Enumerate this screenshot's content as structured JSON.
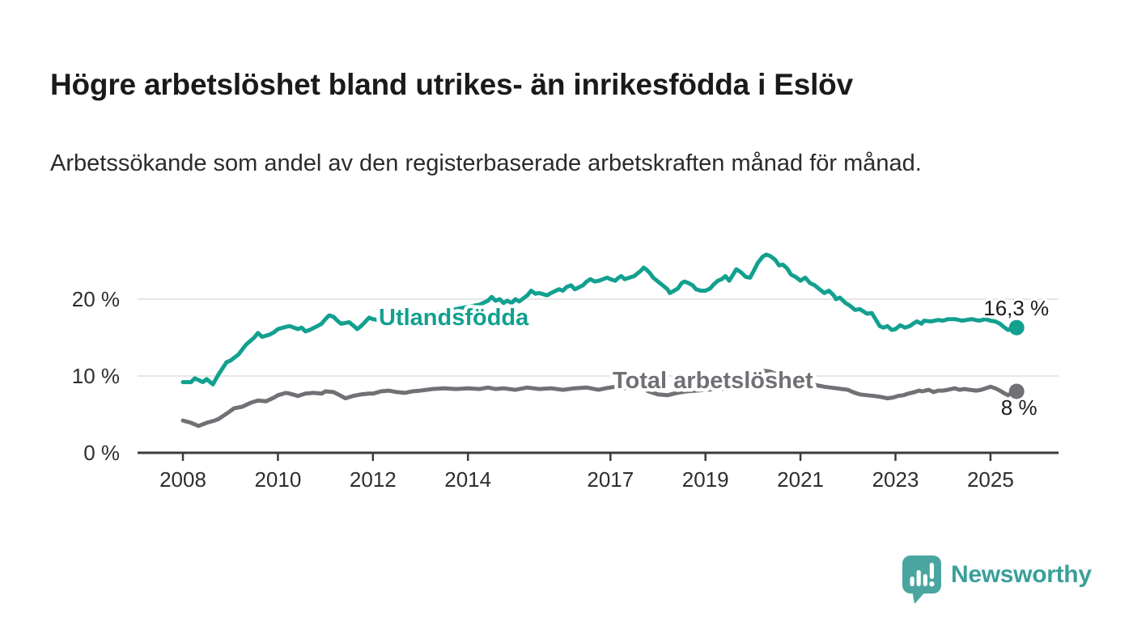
{
  "header": {
    "title": "Högre arbetslöshet bland utrikes- än inrikesfödda i Eslöv",
    "subtitle": "Arbetssökande som andel av den registerbaserade arbetskraften månad för månad."
  },
  "chart_data": {
    "type": "line",
    "title": "Högre arbetslöshet bland utrikes- än inrikesfödda i Eslöv",
    "subtitle": "Arbetssökande som andel av den registerbaserade arbetskraften månad för månad.",
    "grid": true,
    "legend_position": "inline-labels-on-lines",
    "x_axis": {
      "tick_labels": [
        "2008",
        "2010",
        "2012",
        "2014",
        "2017",
        "2019",
        "2021",
        "2023",
        "2025"
      ],
      "tick_values": [
        2008,
        2010,
        2012,
        2014,
        2017,
        2019,
        2021,
        2023,
        2025
      ],
      "range_years": [
        2007.0,
        2026.4
      ]
    },
    "y_axis": {
      "tick_labels": [
        "0 %",
        "10 %",
        "20 %"
      ],
      "tick_values": [
        0,
        10,
        20
      ],
      "unit": "%",
      "range": [
        0,
        27
      ]
    },
    "series": [
      {
        "name": "Utlandsfödda",
        "color": "#12A090",
        "end_value": 16.3,
        "end_value_label": "16,3 %",
        "points": [
          [
            2008.0,
            9.2
          ],
          [
            2008.17,
            9.2
          ],
          [
            2008.25,
            9.7
          ],
          [
            2008.42,
            9.2
          ],
          [
            2008.5,
            9.6
          ],
          [
            2008.63,
            8.9
          ],
          [
            2008.75,
            10.2
          ],
          [
            2008.92,
            11.8
          ],
          [
            2009.0,
            12.0
          ],
          [
            2009.17,
            12.8
          ],
          [
            2009.33,
            14.1
          ],
          [
            2009.5,
            15.0
          ],
          [
            2009.58,
            15.6
          ],
          [
            2009.67,
            15.1
          ],
          [
            2009.83,
            15.4
          ],
          [
            2009.92,
            15.7
          ],
          [
            2010.0,
            16.1
          ],
          [
            2010.17,
            16.4
          ],
          [
            2010.25,
            16.5
          ],
          [
            2010.42,
            16.1
          ],
          [
            2010.5,
            16.3
          ],
          [
            2010.58,
            15.8
          ],
          [
            2010.67,
            16.0
          ],
          [
            2010.83,
            16.5
          ],
          [
            2010.92,
            16.8
          ],
          [
            2011.0,
            17.4
          ],
          [
            2011.08,
            17.9
          ],
          [
            2011.17,
            17.7
          ],
          [
            2011.25,
            17.2
          ],
          [
            2011.33,
            16.8
          ],
          [
            2011.5,
            17.0
          ],
          [
            2011.58,
            16.6
          ],
          [
            2011.67,
            16.1
          ],
          [
            2011.75,
            16.5
          ],
          [
            2011.83,
            17.0
          ],
          [
            2011.92,
            17.6
          ],
          [
            2012.0,
            17.4
          ],
          [
            2012.17,
            17.2
          ],
          [
            2012.25,
            16.8
          ],
          [
            2012.33,
            17.0
          ],
          [
            2012.5,
            17.2
          ],
          [
            2012.75,
            17.5
          ],
          [
            2013.0,
            17.8
          ],
          [
            2013.25,
            18.1
          ],
          [
            2013.5,
            18.4
          ],
          [
            2013.75,
            18.7
          ],
          [
            2014.0,
            19.0
          ],
          [
            2014.25,
            19.3
          ],
          [
            2014.42,
            19.8
          ],
          [
            2014.5,
            20.3
          ],
          [
            2014.58,
            19.8
          ],
          [
            2014.67,
            20.0
          ],
          [
            2014.75,
            19.5
          ],
          [
            2014.83,
            19.8
          ],
          [
            2014.92,
            19.5
          ],
          [
            2015.0,
            20.0
          ],
          [
            2015.08,
            19.7
          ],
          [
            2015.25,
            20.5
          ],
          [
            2015.33,
            21.1
          ],
          [
            2015.42,
            20.7
          ],
          [
            2015.5,
            20.8
          ],
          [
            2015.67,
            20.5
          ],
          [
            2015.75,
            20.8
          ],
          [
            2015.92,
            21.3
          ],
          [
            2016.0,
            21.1
          ],
          [
            2016.08,
            21.6
          ],
          [
            2016.17,
            21.8
          ],
          [
            2016.25,
            21.3
          ],
          [
            2016.42,
            21.8
          ],
          [
            2016.5,
            22.3
          ],
          [
            2016.58,
            22.6
          ],
          [
            2016.67,
            22.3
          ],
          [
            2016.76,
            22.4
          ],
          [
            2016.84,
            22.6
          ],
          [
            2016.93,
            22.8
          ],
          [
            2017.0,
            22.6
          ],
          [
            2017.1,
            22.4
          ],
          [
            2017.17,
            22.8
          ],
          [
            2017.23,
            23.0
          ],
          [
            2017.3,
            22.6
          ],
          [
            2017.4,
            22.8
          ],
          [
            2017.5,
            23.0
          ],
          [
            2017.58,
            23.4
          ],
          [
            2017.64,
            23.7
          ],
          [
            2017.7,
            24.1
          ],
          [
            2017.75,
            23.9
          ],
          [
            2017.83,
            23.4
          ],
          [
            2017.9,
            22.8
          ],
          [
            2018.0,
            22.3
          ],
          [
            2018.1,
            21.8
          ],
          [
            2018.2,
            21.3
          ],
          [
            2018.25,
            20.8
          ],
          [
            2018.34,
            21.1
          ],
          [
            2018.42,
            21.4
          ],
          [
            2018.5,
            22.1
          ],
          [
            2018.56,
            22.3
          ],
          [
            2018.64,
            22.1
          ],
          [
            2018.73,
            21.8
          ],
          [
            2018.8,
            21.3
          ],
          [
            2018.9,
            21.1
          ],
          [
            2019.0,
            21.1
          ],
          [
            2019.1,
            21.4
          ],
          [
            2019.17,
            21.9
          ],
          [
            2019.26,
            22.4
          ],
          [
            2019.34,
            22.6
          ],
          [
            2019.42,
            23.0
          ],
          [
            2019.5,
            22.4
          ],
          [
            2019.65,
            23.9
          ],
          [
            2019.75,
            23.5
          ],
          [
            2019.85,
            22.9
          ],
          [
            2019.94,
            22.8
          ],
          [
            2020.0,
            23.5
          ],
          [
            2020.1,
            24.7
          ],
          [
            2020.2,
            25.5
          ],
          [
            2020.28,
            25.8
          ],
          [
            2020.37,
            25.6
          ],
          [
            2020.47,
            25.1
          ],
          [
            2020.55,
            24.4
          ],
          [
            2020.63,
            24.5
          ],
          [
            2020.72,
            24.0
          ],
          [
            2020.8,
            23.2
          ],
          [
            2020.9,
            22.9
          ],
          [
            2021.0,
            22.4
          ],
          [
            2021.1,
            22.8
          ],
          [
            2021.2,
            22.1
          ],
          [
            2021.3,
            21.8
          ],
          [
            2021.4,
            21.3
          ],
          [
            2021.5,
            20.8
          ],
          [
            2021.6,
            21.1
          ],
          [
            2021.7,
            20.5
          ],
          [
            2021.75,
            20.0
          ],
          [
            2021.83,
            20.2
          ],
          [
            2021.95,
            19.5
          ],
          [
            2022.03,
            19.2
          ],
          [
            2022.15,
            18.6
          ],
          [
            2022.25,
            18.7
          ],
          [
            2022.4,
            18.1
          ],
          [
            2022.5,
            18.2
          ],
          [
            2022.6,
            17.2
          ],
          [
            2022.67,
            16.5
          ],
          [
            2022.75,
            16.3
          ],
          [
            2022.83,
            16.5
          ],
          [
            2022.92,
            16.0
          ],
          [
            2023.0,
            16.1
          ],
          [
            2023.1,
            16.6
          ],
          [
            2023.2,
            16.3
          ],
          [
            2023.3,
            16.5
          ],
          [
            2023.37,
            16.8
          ],
          [
            2023.45,
            17.1
          ],
          [
            2023.55,
            16.8
          ],
          [
            2023.6,
            17.2
          ],
          [
            2023.75,
            17.1
          ],
          [
            2023.9,
            17.3
          ],
          [
            2024.0,
            17.2
          ],
          [
            2024.1,
            17.4
          ],
          [
            2024.25,
            17.4
          ],
          [
            2024.4,
            17.2
          ],
          [
            2024.6,
            17.4
          ],
          [
            2024.76,
            17.2
          ],
          [
            2024.9,
            17.4
          ],
          [
            2025.0,
            17.2
          ],
          [
            2025.1,
            17.1
          ],
          [
            2025.2,
            16.8
          ],
          [
            2025.3,
            16.3
          ],
          [
            2025.37,
            16.0
          ],
          [
            2025.45,
            16.1
          ],
          [
            2025.55,
            16.3
          ]
        ]
      },
      {
        "name": "Total arbetslöshet",
        "color": "#6F7175",
        "end_value": 8.0,
        "end_value_label": "8 %",
        "points": [
          [
            2008.0,
            4.2
          ],
          [
            2008.17,
            3.9
          ],
          [
            2008.33,
            3.5
          ],
          [
            2008.5,
            3.9
          ],
          [
            2008.67,
            4.2
          ],
          [
            2008.75,
            4.4
          ],
          [
            2008.92,
            5.1
          ],
          [
            2009.08,
            5.8
          ],
          [
            2009.25,
            6.0
          ],
          [
            2009.42,
            6.5
          ],
          [
            2009.58,
            6.8
          ],
          [
            2009.75,
            6.7
          ],
          [
            2009.92,
            7.2
          ],
          [
            2010.0,
            7.5
          ],
          [
            2010.17,
            7.8
          ],
          [
            2010.25,
            7.7
          ],
          [
            2010.42,
            7.4
          ],
          [
            2010.58,
            7.7
          ],
          [
            2010.75,
            7.8
          ],
          [
            2010.92,
            7.7
          ],
          [
            2011.0,
            8.0
          ],
          [
            2011.17,
            7.9
          ],
          [
            2011.33,
            7.4
          ],
          [
            2011.42,
            7.1
          ],
          [
            2011.58,
            7.4
          ],
          [
            2011.75,
            7.6
          ],
          [
            2011.92,
            7.7
          ],
          [
            2012.0,
            7.7
          ],
          [
            2012.17,
            8.0
          ],
          [
            2012.33,
            8.1
          ],
          [
            2012.5,
            7.9
          ],
          [
            2012.67,
            7.8
          ],
          [
            2012.83,
            8.0
          ],
          [
            2013.0,
            8.1
          ],
          [
            2013.25,
            8.3
          ],
          [
            2013.5,
            8.4
          ],
          [
            2013.75,
            8.3
          ],
          [
            2014.0,
            8.4
          ],
          [
            2014.25,
            8.3
          ],
          [
            2014.42,
            8.5
          ],
          [
            2014.58,
            8.3
          ],
          [
            2014.75,
            8.4
          ],
          [
            2015.0,
            8.2
          ],
          [
            2015.25,
            8.5
          ],
          [
            2015.5,
            8.3
          ],
          [
            2015.75,
            8.4
          ],
          [
            2016.0,
            8.2
          ],
          [
            2016.25,
            8.4
          ],
          [
            2016.5,
            8.5
          ],
          [
            2016.75,
            8.2
          ],
          [
            2016.9,
            8.4
          ],
          [
            2017.1,
            8.6
          ],
          [
            2017.3,
            8.4
          ],
          [
            2017.6,
            8.6
          ],
          [
            2017.8,
            8.0
          ],
          [
            2018.0,
            7.6
          ],
          [
            2018.2,
            7.5
          ],
          [
            2018.4,
            7.8
          ],
          [
            2018.6,
            8.0
          ],
          [
            2018.8,
            8.1
          ],
          [
            2019.0,
            8.2
          ],
          [
            2019.25,
            8.3
          ],
          [
            2019.5,
            8.4
          ],
          [
            2019.75,
            8.5
          ],
          [
            2019.9,
            8.7
          ],
          [
            2020.0,
            9.0
          ],
          [
            2020.1,
            10.2
          ],
          [
            2020.2,
            10.7
          ],
          [
            2020.35,
            10.6
          ],
          [
            2020.5,
            10.2
          ],
          [
            2020.7,
            9.8
          ],
          [
            2020.9,
            9.4
          ],
          [
            2021.0,
            9.2
          ],
          [
            2021.25,
            8.9
          ],
          [
            2021.5,
            8.6
          ],
          [
            2021.75,
            8.4
          ],
          [
            2022.0,
            8.2
          ],
          [
            2022.1,
            7.9
          ],
          [
            2022.25,
            7.6
          ],
          [
            2022.4,
            7.5
          ],
          [
            2022.55,
            7.4
          ],
          [
            2022.67,
            7.3
          ],
          [
            2022.83,
            7.1
          ],
          [
            2022.95,
            7.2
          ],
          [
            2023.05,
            7.4
          ],
          [
            2023.17,
            7.5
          ],
          [
            2023.27,
            7.7
          ],
          [
            2023.4,
            7.9
          ],
          [
            2023.5,
            8.1
          ],
          [
            2023.56,
            8.0
          ],
          [
            2023.7,
            8.2
          ],
          [
            2023.8,
            7.9
          ],
          [
            2023.9,
            8.1
          ],
          [
            2024.0,
            8.1
          ],
          [
            2024.1,
            8.2
          ],
          [
            2024.25,
            8.4
          ],
          [
            2024.35,
            8.2
          ],
          [
            2024.45,
            8.3
          ],
          [
            2024.57,
            8.2
          ],
          [
            2024.7,
            8.1
          ],
          [
            2024.8,
            8.2
          ],
          [
            2024.9,
            8.4
          ],
          [
            2025.0,
            8.6
          ],
          [
            2025.1,
            8.4
          ],
          [
            2025.2,
            8.1
          ],
          [
            2025.3,
            7.7
          ],
          [
            2025.37,
            7.5
          ],
          [
            2025.45,
            7.8
          ],
          [
            2025.55,
            8.0
          ]
        ]
      }
    ]
  },
  "footer": {
    "brand": "Newsworthy"
  },
  "colors": {
    "accent_teal": "#12A090",
    "line_gray": "#6F7175",
    "grid": "#DDDDDD",
    "axis": "#3B3B3B",
    "logo_teal": "#4AA5A0",
    "wordmark_teal": "#39A099",
    "text_dark": "#1A1A1A"
  }
}
